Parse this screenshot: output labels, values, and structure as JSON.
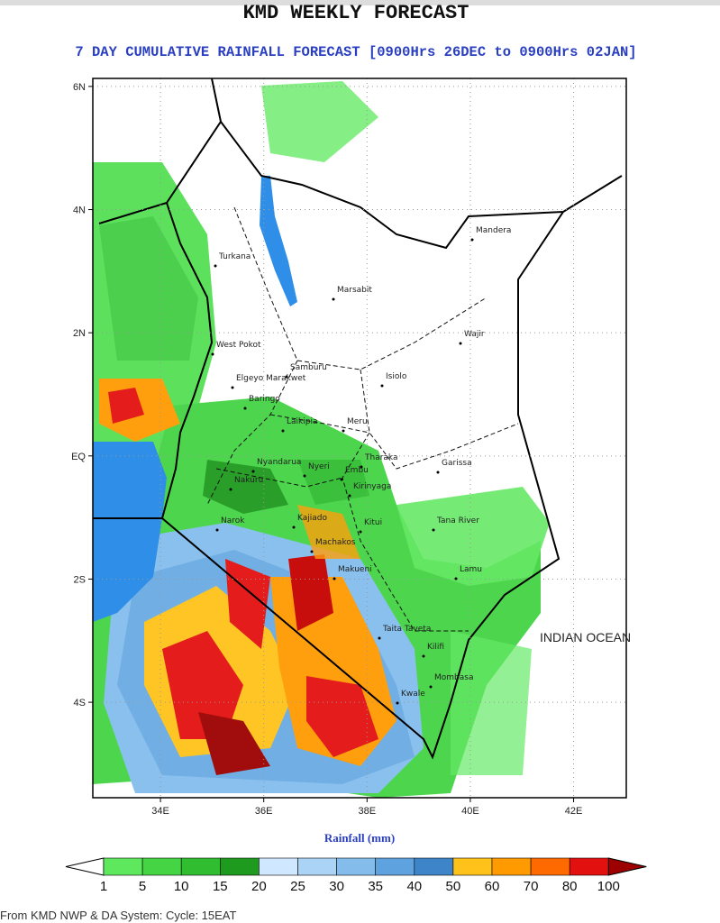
{
  "title": "KMD WEEKLY FORECAST",
  "subtitle": "7 DAY CUMULATIVE RAINFALL FORECAST [0900Hrs 26DEC to 0900Hrs 02JAN]",
  "map": {
    "lonlim": [
      32.69,
      43.02
    ],
    "latlim": [
      -5.55,
      6.13
    ],
    "lat_ticks": [
      {
        "value": 6,
        "label": "6N"
      },
      {
        "value": 4,
        "label": "4N"
      },
      {
        "value": 2,
        "label": "2N"
      },
      {
        "value": 0,
        "label": "EQ"
      },
      {
        "value": -2,
        "label": "2S"
      },
      {
        "value": -4,
        "label": "4S"
      }
    ],
    "lon_ticks": [
      {
        "value": 34,
        "label": "34E"
      },
      {
        "value": 36,
        "label": "36E"
      },
      {
        "value": 38,
        "label": "38E"
      },
      {
        "value": 40,
        "label": "40E"
      },
      {
        "value": 42,
        "label": "42E"
      }
    ],
    "places": [
      "Mandera",
      "Turkana",
      "Marsabit",
      "Wajir",
      "West Pokot",
      "Samburu",
      "Isiolo",
      "Elgeyo Marakwet",
      "Baringo",
      "Laikipia",
      "Meru",
      "Garissa",
      "Nyandarua",
      "Nyeri",
      "Tharaka",
      "Embu",
      "Kirinyaga",
      "Nakuru",
      "Narok",
      "Kajiado",
      "Kitui",
      "Tana River",
      "Machakos",
      "Makueni",
      "Lamu",
      "Taita Taveta",
      "Kilifi",
      "Mombasa",
      "Kwale"
    ],
    "ocean_label": "INDIAN OCEAN"
  },
  "legend": {
    "title": "Rainfall (mm)",
    "levels": [
      1,
      5,
      10,
      15,
      20,
      25,
      30,
      35,
      40,
      50,
      60,
      70,
      80,
      100
    ],
    "colors": [
      "#ffffff",
      "#5ee85e",
      "#44d444",
      "#30bd30",
      "#1e9a1e",
      "#cfe8ff",
      "#aad3f6",
      "#84bdec",
      "#5ea2e0",
      "#3d84c9",
      "#ffc21a",
      "#ff9a00",
      "#ff6a00",
      "#e31010",
      "#9c0000"
    ]
  },
  "footer": "From KMD NWP & DA System: Cycle: 15EAT"
}
